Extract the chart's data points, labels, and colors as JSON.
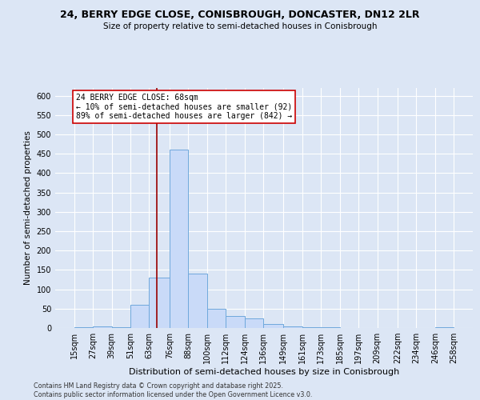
{
  "title_line1": "24, BERRY EDGE CLOSE, CONISBROUGH, DONCASTER, DN12 2LR",
  "title_line2": "Size of property relative to semi-detached houses in Conisbrough",
  "xlabel": "Distribution of semi-detached houses by size in Conisbrough",
  "ylabel": "Number of semi-detached properties",
  "footer_line1": "Contains HM Land Registry data © Crown copyright and database right 2025.",
  "footer_line2": "Contains public sector information licensed under the Open Government Licence v3.0.",
  "property_sqm": 68,
  "annotation_label": "24 BERRY EDGE CLOSE: 68sqm",
  "annotation_smaller": "← 10% of semi-detached houses are smaller (92)",
  "annotation_larger": "89% of semi-detached houses are larger (842) →",
  "bar_color": "#c9daf8",
  "bar_edge_color": "#6fa8dc",
  "redline_color": "#990000",
  "annotation_box_color": "#cc0000",
  "bg_color": "#dce6f5",
  "grid_color": "#ffffff",
  "ylim": [
    0,
    620
  ],
  "yticks": [
    0,
    50,
    100,
    150,
    200,
    250,
    300,
    350,
    400,
    450,
    500,
    550,
    600
  ],
  "bin_edges": [
    15,
    27,
    39,
    51,
    63,
    76,
    88,
    100,
    112,
    124,
    136,
    149,
    161,
    173,
    185,
    197,
    209,
    222,
    234,
    246,
    258
  ],
  "bin_labels": [
    "15sqm",
    "27sqm",
    "39sqm",
    "51sqm",
    "63sqm",
    "76sqm",
    "88sqm",
    "100sqm",
    "112sqm",
    "124sqm",
    "136sqm",
    "149sqm",
    "161sqm",
    "173sqm",
    "185sqm",
    "197sqm",
    "209sqm",
    "222sqm",
    "234sqm",
    "246sqm",
    "258sqm"
  ],
  "counts": [
    2,
    4,
    3,
    60,
    130,
    460,
    140,
    50,
    30,
    25,
    10,
    5,
    3,
    2,
    1,
    0,
    0,
    0,
    0,
    2
  ]
}
